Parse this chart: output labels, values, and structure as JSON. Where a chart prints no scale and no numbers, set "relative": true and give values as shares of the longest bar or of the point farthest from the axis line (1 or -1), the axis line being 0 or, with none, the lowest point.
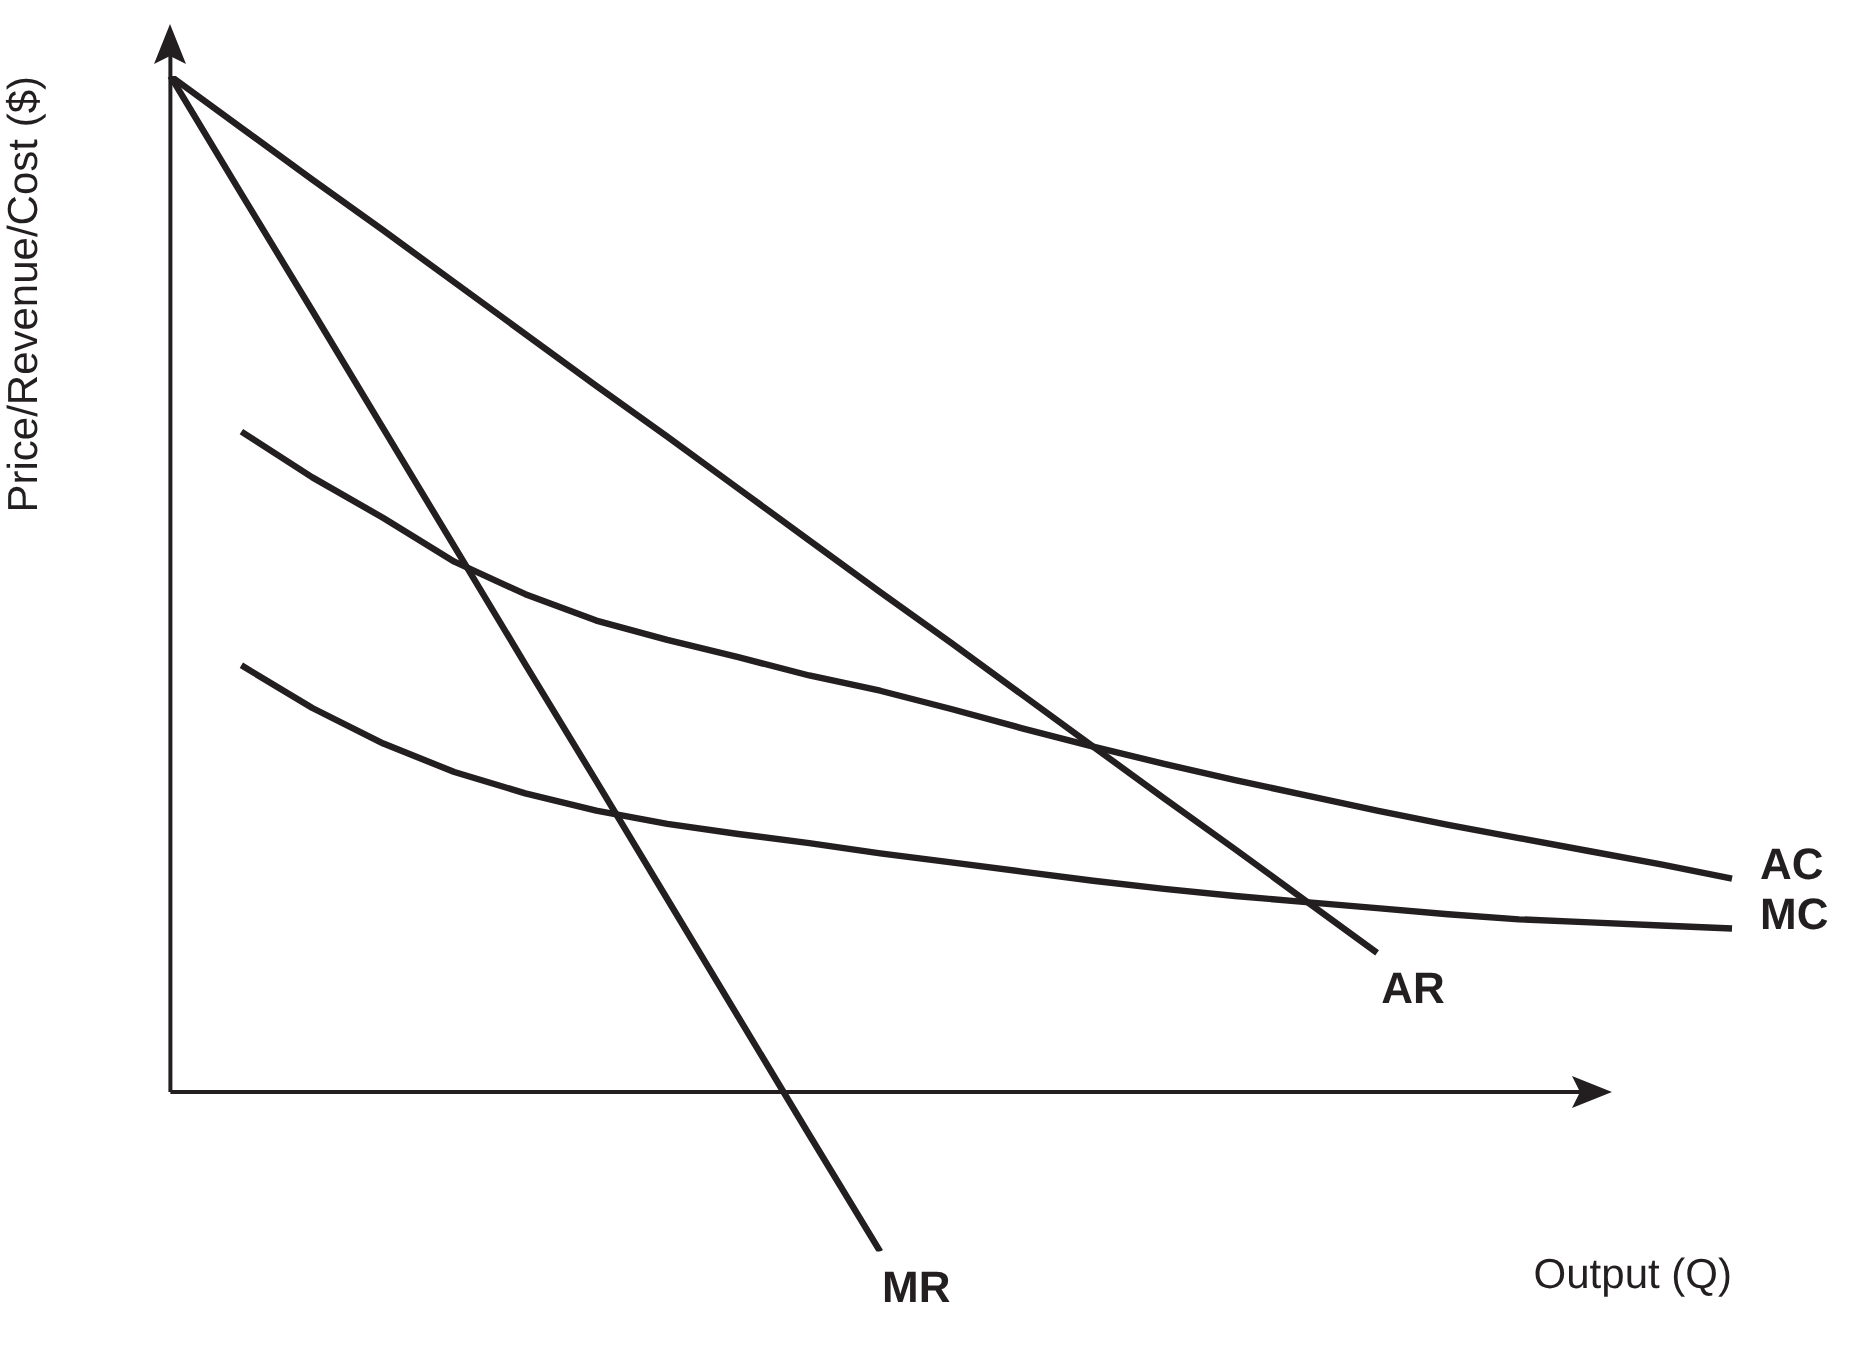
{
  "chart_data": {
    "type": "line",
    "relative": true,
    "xlabel": "Output (Q)",
    "ylabel": "Price/Revenue/Cost ($)",
    "grid": false,
    "legend": false,
    "marker": "none",
    "line_style": "solid",
    "categories": [
      null,
      null,
      null,
      null,
      null,
      null,
      null,
      null,
      null,
      null,
      null,
      null,
      null,
      null,
      null,
      null,
      null,
      null,
      null,
      null,
      null,
      null,
      null
    ],
    "series": [
      {
        "name": "AR",
        "color": "#231f20",
        "values": [
          1,
          0.949,
          0.898,
          0.848,
          0.797,
          0.746,
          0.695,
          0.645,
          0.594,
          0.543,
          0.492,
          0.442,
          0.391,
          0.34,
          0.289,
          0.239,
          0.188,
          0.137,
          null,
          null,
          null,
          null,
          null
        ]
      },
      {
        "name": "MR",
        "color": "#231f20",
        "values": [
          1,
          0.884,
          0.769,
          0.653,
          0.537,
          0.421,
          0.306,
          0.19,
          0.074,
          -0.042,
          -0.157,
          null,
          null,
          null,
          null,
          null,
          null,
          null,
          null,
          null,
          null,
          null,
          null
        ]
      },
      {
        "name": "AC",
        "color": "#231f20",
        "values": [
          null,
          0.65,
          0.605,
          0.565,
          0.522,
          0.49,
          0.464,
          0.445,
          0.428,
          0.41,
          0.395,
          0.377,
          0.358,
          0.34,
          0.323,
          0.307,
          0.292,
          0.277,
          0.263,
          0.25,
          0.237,
          0.224,
          0.21
        ]
      },
      {
        "name": "MC",
        "color": "#231f20",
        "values": [
          null,
          0.42,
          0.378,
          0.343,
          0.315,
          0.294,
          0.277,
          0.264,
          0.254,
          0.245,
          0.235,
          0.226,
          0.217,
          0.208,
          0.2,
          0.193,
          0.187,
          0.181,
          0.175,
          0.17,
          0.167,
          0.164,
          0.161
        ]
      }
    ]
  }
}
